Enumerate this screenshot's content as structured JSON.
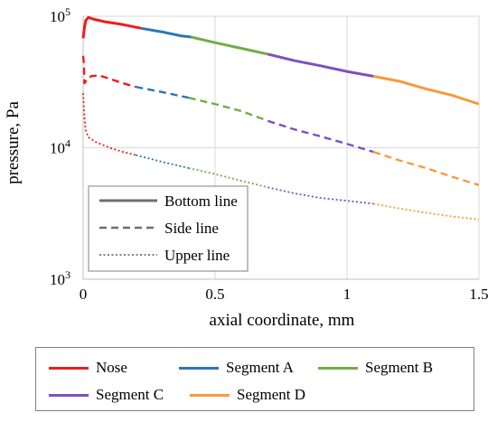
{
  "chart_data": {
    "type": "line",
    "xlabel": "axial coordinate, mm",
    "ylabel": "pressure, Pa",
    "xlim": [
      0,
      1.5
    ],
    "ylim": [
      1000,
      100000
    ],
    "y_scale": "log",
    "grid": true,
    "x_ticks": [
      0,
      0.5,
      1,
      1.5
    ],
    "x_tick_labels": [
      "0",
      "0.5",
      "1",
      "1.5"
    ],
    "y_ticks": [
      {
        "value": 1000,
        "base": "10",
        "exp": "3"
      },
      {
        "value": 10000,
        "base": "10",
        "exp": "4"
      },
      {
        "value": 100000,
        "base": "10",
        "exp": "5"
      }
    ],
    "segment_colors": {
      "Nose": "#ee1c1c",
      "Segment A": "#2e75b6",
      "Segment B": "#70ad47",
      "Segment C": "#7f4fbf",
      "Segment D": "#f79b3c"
    },
    "lines": [
      {
        "name": "Bottom line",
        "style": "solid",
        "points": [
          [
            0,
            68000
          ],
          [
            0.005,
            82000
          ],
          [
            0.01,
            93000
          ],
          [
            0.02,
            98000
          ],
          [
            0.04,
            95000
          ],
          [
            0.08,
            91000
          ],
          [
            0.15,
            86500
          ],
          [
            0.22,
            81000
          ],
          [
            0.3,
            76000
          ],
          [
            0.37,
            71000
          ],
          [
            0.41,
            69500
          ],
          [
            0.5,
            63000
          ],
          [
            0.6,
            57000
          ],
          [
            0.7,
            51500
          ],
          [
            0.8,
            46000
          ],
          [
            0.9,
            42000
          ],
          [
            1.0,
            38000
          ],
          [
            1.1,
            35000
          ],
          [
            1.2,
            32000
          ],
          [
            1.3,
            28000
          ],
          [
            1.4,
            25000
          ],
          [
            1.5,
            21500
          ]
        ],
        "segments": [
          {
            "name": "Nose",
            "x": [
              0,
              0.22
            ]
          },
          {
            "name": "Segment A",
            "x": [
              0.22,
              0.41
            ]
          },
          {
            "name": "Segment B",
            "x": [
              0.41,
              0.7
            ]
          },
          {
            "name": "Segment C",
            "x": [
              0.7,
              1.1
            ]
          },
          {
            "name": "Segment D",
            "x": [
              1.1,
              1.5
            ]
          }
        ]
      },
      {
        "name": "Side line",
        "style": "dashed",
        "points": [
          [
            0,
            50000
          ],
          [
            0.003,
            43000
          ],
          [
            0.005,
            31000
          ],
          [
            0.01,
            32000
          ],
          [
            0.03,
            35000
          ],
          [
            0.06,
            35500
          ],
          [
            0.1,
            33500
          ],
          [
            0.15,
            31000
          ],
          [
            0.2,
            29000
          ],
          [
            0.3,
            26500
          ],
          [
            0.4,
            24000
          ],
          [
            0.5,
            21500
          ],
          [
            0.6,
            19000
          ],
          [
            0.7,
            16000
          ],
          [
            0.8,
            13800
          ],
          [
            0.9,
            12200
          ],
          [
            1.0,
            10700
          ],
          [
            1.1,
            9300
          ],
          [
            1.2,
            8000
          ],
          [
            1.3,
            7000
          ],
          [
            1.4,
            6000
          ],
          [
            1.5,
            5200
          ]
        ],
        "segments": [
          {
            "name": "Nose",
            "x": [
              0,
              0.2
            ]
          },
          {
            "name": "Segment A",
            "x": [
              0.2,
              0.4
            ]
          },
          {
            "name": "Segment B",
            "x": [
              0.4,
              0.7
            ]
          },
          {
            "name": "Segment C",
            "x": [
              0.7,
              1.1
            ]
          },
          {
            "name": "Segment D",
            "x": [
              1.1,
              1.5
            ]
          }
        ]
      },
      {
        "name": "Upper line",
        "style": "dotted",
        "points": [
          [
            0,
            26000
          ],
          [
            0.005,
            17000
          ],
          [
            0.01,
            13500
          ],
          [
            0.02,
            12000
          ],
          [
            0.05,
            11000
          ],
          [
            0.1,
            10000
          ],
          [
            0.15,
            9300
          ],
          [
            0.2,
            8800
          ],
          [
            0.3,
            7800
          ],
          [
            0.4,
            7000
          ],
          [
            0.5,
            6300
          ],
          [
            0.6,
            5600
          ],
          [
            0.7,
            5000
          ],
          [
            0.8,
            4500
          ],
          [
            0.9,
            4150
          ],
          [
            1.0,
            3950
          ],
          [
            1.1,
            3750
          ],
          [
            1.2,
            3450
          ],
          [
            1.3,
            3200
          ],
          [
            1.4,
            3000
          ],
          [
            1.5,
            2850
          ]
        ],
        "segments": [
          {
            "name": "Nose",
            "x": [
              0,
              0.2
            ]
          },
          {
            "name": "Segment A",
            "x": [
              0.2,
              0.4
            ]
          },
          {
            "name": "Segment B",
            "x": [
              0.4,
              0.7
            ]
          },
          {
            "name": "Segment C",
            "x": [
              0.7,
              1.1
            ]
          },
          {
            "name": "Segment D",
            "x": [
              1.1,
              1.5
            ]
          }
        ]
      }
    ],
    "inner_legend": [
      {
        "label": "Bottom line",
        "style": "solid"
      },
      {
        "label": "Side line",
        "style": "dashed"
      },
      {
        "label": "Upper line",
        "style": "dotted"
      }
    ],
    "inner_legend_position": "bottom-left",
    "outer_legend": [
      {
        "label": "Nose",
        "color": "#ee1c1c"
      },
      {
        "label": "Segment A",
        "color": "#2e75b6"
      },
      {
        "label": "Segment B",
        "color": "#70ad47"
      },
      {
        "label": "Segment C",
        "color": "#7f4fbf"
      },
      {
        "label": "Segment D",
        "color": "#f79b3c"
      }
    ],
    "outer_legend_position": "below"
  }
}
